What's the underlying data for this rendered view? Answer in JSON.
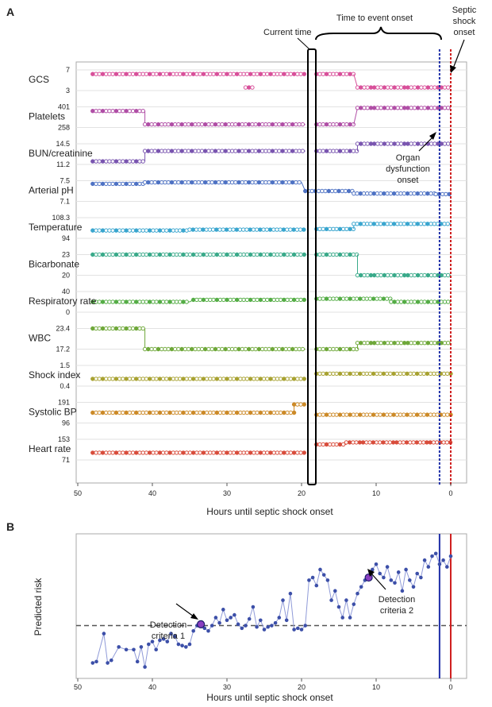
{
  "chart_data": [
    {
      "panel": "A",
      "type": "scatter",
      "xlabel": "Hours until septic shock onset",
      "x_ticks": [
        "50",
        "40",
        "30",
        "20",
        "10",
        "0"
      ],
      "xlim": [
        50,
        0
      ],
      "markers": {
        "current_time": 19,
        "organ_dysfunction_onset": 1.5,
        "septic_shock_onset": 0
      },
      "annotations": {
        "time_to_event": "Time to event onset",
        "current_time": "Current time",
        "septic_shock": [
          "Septic",
          "shock",
          "onset"
        ],
        "organ_dysfunction": [
          "Organ",
          "dysfunction",
          "onset"
        ]
      },
      "series": [
        {
          "name": "GCS",
          "ticks": [
            "7",
            "3"
          ],
          "color": "#d8509a",
          "segments": [
            [
              48,
              25.5,
              0.2
            ],
            [
              27.5,
              26.5,
              0.85
            ],
            [
              25.5,
              19.5,
              0.2
            ],
            [
              18,
              13,
              0.2
            ],
            [
              12.5,
              0,
              0.85
            ]
          ]
        },
        {
          "name": "Platelets",
          "ticks": [
            "401",
            "258"
          ],
          "color": "#b04fa6",
          "segments": [
            [
              48,
              41,
              0.2
            ],
            [
              41,
              19.5,
              0.85
            ],
            [
              18,
              13,
              0.85
            ],
            [
              12.5,
              0,
              0.05
            ]
          ]
        },
        {
          "name": "BUN/creatinine",
          "ticks": [
            "14.5",
            "11.2"
          ],
          "color": "#7a56b0",
          "segments": [
            [
              48,
              41,
              0.85
            ],
            [
              41,
              19.5,
              0.35
            ],
            [
              18,
              12.5,
              0.35
            ],
            [
              12.5,
              0,
              0.0
            ]
          ]
        },
        {
          "name": "Arterial pH",
          "ticks": [
            "7.5",
            "7.1"
          ],
          "color": "#4f73c4",
          "segments": [
            [
              48,
              41,
              0.15
            ],
            [
              41,
              20,
              0.08
            ],
            [
              19.5,
              13,
              0.5
            ],
            [
              13,
              2,
              0.62
            ],
            [
              2,
              0,
              0.65
            ]
          ]
        },
        {
          "name": "Temperature",
          "ticks": [
            "108.3",
            "94"
          ],
          "color": "#3ba6cf",
          "segments": [
            [
              48,
              35,
              0.62
            ],
            [
              35,
              19.5,
              0.58
            ],
            [
              18,
              13,
              0.55
            ],
            [
              13,
              0,
              0.3
            ]
          ]
        },
        {
          "name": "Bicarbonate",
          "ticks": [
            "23",
            "20"
          ],
          "color": "#3aaa8a",
          "segments": [
            [
              48,
              19.5,
              0.0
            ],
            [
              18,
              12.5,
              0.0
            ],
            [
              12.5,
              0,
              1.0
            ]
          ]
        },
        {
          "name": "Respiratory rate",
          "ticks": [
            "40",
            "0"
          ],
          "color": "#55ad46",
          "segments": [
            [
              48,
              35,
              0.5
            ],
            [
              34.5,
              19.5,
              0.4
            ],
            [
              18,
              8,
              0.35
            ],
            [
              8,
              0,
              0.5
            ]
          ]
        },
        {
          "name": "WBC",
          "ticks": [
            "23.4",
            "17.2"
          ],
          "color": "#6fa83a",
          "segments": [
            [
              48,
              41,
              0.0
            ],
            [
              41,
              19.5,
              1.0
            ],
            [
              18,
              12.5,
              1.0
            ],
            [
              12.5,
              0,
              0.7
            ]
          ]
        },
        {
          "name": "Shock index",
          "ticks": [
            "1.5",
            "0.4"
          ],
          "color": "#a8a232",
          "segments": [
            [
              48,
              19.5,
              0.65
            ],
            [
              18,
              0,
              0.4
            ]
          ]
        },
        {
          "name": "Systolic BP",
          "ticks": [
            "191",
            "96"
          ],
          "color": "#cc8a28",
          "segments": [
            [
              48,
              21,
              0.5
            ],
            [
              21,
              19.5,
              0.1
            ],
            [
              18,
              0,
              0.6
            ]
          ]
        },
        {
          "name": "Heart rate",
          "ticks": [
            "153",
            "71"
          ],
          "color": "#d84d3c",
          "segments": [
            [
              48,
              19.5,
              0.65
            ],
            [
              18,
              14,
              0.25
            ],
            [
              14,
              0,
              0.15
            ]
          ]
        }
      ]
    },
    {
      "panel": "B",
      "type": "line",
      "xlabel": "Hours until septic shock onset",
      "ylabel": "Predicted risk",
      "x_ticks": [
        "50",
        "40",
        "30",
        "20",
        "10",
        "0"
      ],
      "xlim": [
        50,
        0
      ],
      "ylim": [
        0,
        1
      ],
      "threshold": 0.36,
      "color": "#3c4fa8",
      "x": [
        48,
        47.5,
        46.5,
        46,
        45.5,
        44.5,
        43.5,
        42.5,
        42,
        41.5,
        41,
        40.5,
        40,
        39.5,
        39,
        38.5,
        38,
        37.5,
        37,
        36.5,
        36,
        35.5,
        35,
        34.5,
        34,
        33.5,
        33,
        32.5,
        32,
        31.5,
        31,
        30.5,
        30,
        29.5,
        29,
        28.5,
        28,
        27.5,
        27,
        26.5,
        26,
        25.5,
        25,
        24.5,
        24,
        23.5,
        23,
        22.5,
        22,
        21.5,
        21,
        20.5,
        20,
        19.5,
        19,
        18.5,
        18,
        17.5,
        17,
        16.5,
        16,
        15.5,
        15,
        14.5,
        14,
        13.5,
        13,
        12.5,
        12,
        11.5,
        11,
        10.5,
        10,
        9.5,
        9,
        8.5,
        8,
        7.5,
        7,
        6.5,
        6,
        5.5,
        5,
        4.5,
        4,
        3.5,
        3,
        2.5,
        2,
        1.5,
        1,
        0.5,
        0
      ],
      "values": [
        0.08,
        0.09,
        0.3,
        0.08,
        0.1,
        0.2,
        0.18,
        0.18,
        0.09,
        0.2,
        0.05,
        0.22,
        0.24,
        0.18,
        0.25,
        0.26,
        0.24,
        0.3,
        0.28,
        0.22,
        0.21,
        0.2,
        0.22,
        0.32,
        0.36,
        0.37,
        0.34,
        0.32,
        0.36,
        0.42,
        0.38,
        0.48,
        0.4,
        0.42,
        0.44,
        0.37,
        0.34,
        0.36,
        0.41,
        0.5,
        0.35,
        0.4,
        0.33,
        0.35,
        0.36,
        0.38,
        0.42,
        0.55,
        0.4,
        0.6,
        0.33,
        0.34,
        0.33,
        0.36,
        0.7,
        0.72,
        0.66,
        0.78,
        0.74,
        0.7,
        0.55,
        0.62,
        0.5,
        0.42,
        0.55,
        0.42,
        0.52,
        0.6,
        0.65,
        0.7,
        0.72,
        0.78,
        0.82,
        0.75,
        0.72,
        0.8,
        0.7,
        0.68,
        0.76,
        0.62,
        0.78,
        0.7,
        0.65,
        0.75,
        0.72,
        0.85,
        0.8,
        0.88,
        0.9,
        0.82,
        0.85,
        0.8,
        0.88
      ],
      "detection_points": [
        {
          "label": [
            "Detection",
            "criteria 1"
          ],
          "x": 33.5,
          "value": 0.37
        },
        {
          "label": [
            "Detection",
            "criteria 2"
          ],
          "x": 11,
          "value": 0.72
        }
      ]
    }
  ]
}
